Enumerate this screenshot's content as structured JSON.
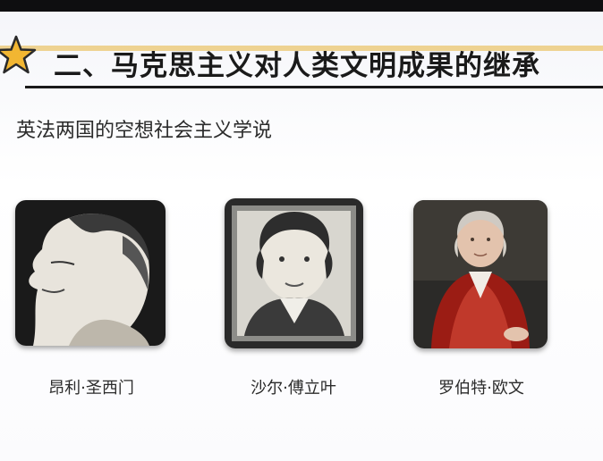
{
  "slide": {
    "title": "二、马克思主义对人类文明成果的继承",
    "subtitle": "英法两国的空想社会主义学说",
    "accent_color": "#e7b53b",
    "portraits": [
      {
        "caption": "昂利·圣西门",
        "icon": "portrait-saint-simon"
      },
      {
        "caption": "沙尔·傅立叶",
        "icon": "portrait-fourier"
      },
      {
        "caption": "罗伯特·欧文",
        "icon": "portrait-owen"
      }
    ]
  }
}
